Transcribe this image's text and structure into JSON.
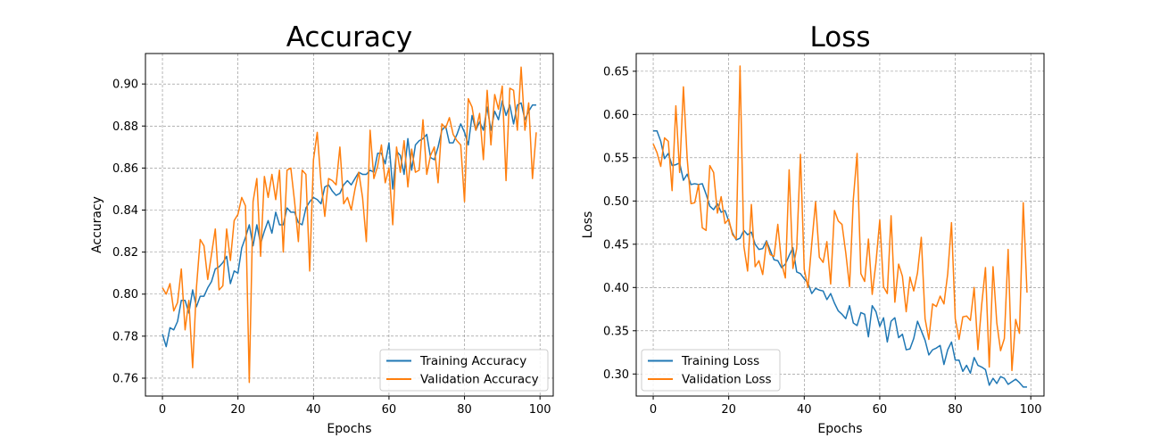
{
  "chart_data": [
    {
      "type": "line",
      "title": "Accuracy",
      "xlabel": "Epochs",
      "ylabel": "Accuracy",
      "xlim": [
        -4.5,
        103.5
      ],
      "ylim": [
        0.7515,
        0.9145
      ],
      "xticks": [
        0,
        20,
        40,
        60,
        80,
        100
      ],
      "yticks": [
        0.76,
        0.78,
        0.8,
        0.82,
        0.84,
        0.86,
        0.88,
        0.9
      ],
      "ytick_decimals": 2,
      "grid": true,
      "legend_position": "lower-right",
      "series": [
        {
          "name": "Training Accuracy",
          "color": "#1f77b4",
          "values": [
            0.781,
            0.775,
            0.784,
            0.783,
            0.787,
            0.797,
            0.797,
            0.791,
            0.802,
            0.794,
            0.799,
            0.799,
            0.803,
            0.806,
            0.812,
            0.813,
            0.815,
            0.818,
            0.805,
            0.811,
            0.81,
            0.822,
            0.827,
            0.833,
            0.823,
            0.833,
            0.824,
            0.83,
            0.835,
            0.829,
            0.839,
            0.833,
            0.833,
            0.841,
            0.839,
            0.839,
            0.834,
            0.833,
            0.841,
            0.844,
            0.846,
            0.845,
            0.843,
            0.851,
            0.852,
            0.849,
            0.847,
            0.848,
            0.852,
            0.854,
            0.852,
            0.855,
            0.858,
            0.857,
            0.857,
            0.859,
            0.858,
            0.867,
            0.867,
            0.862,
            0.872,
            0.85,
            0.868,
            0.866,
            0.857,
            0.874,
            0.859,
            0.871,
            0.873,
            0.874,
            0.876,
            0.865,
            0.864,
            0.87,
            0.878,
            0.88,
            0.872,
            0.872,
            0.876,
            0.881,
            0.877,
            0.871,
            0.885,
            0.878,
            0.882,
            0.878,
            0.889,
            0.878,
            0.887,
            0.883,
            0.892,
            0.885,
            0.89,
            0.881,
            0.89,
            0.891,
            0.883,
            0.887,
            0.89,
            0.89
          ]
        },
        {
          "name": "Validation Accuracy",
          "color": "#ff7f0e",
          "values": [
            0.803,
            0.8,
            0.805,
            0.792,
            0.796,
            0.812,
            0.783,
            0.797,
            0.765,
            0.803,
            0.826,
            0.823,
            0.807,
            0.819,
            0.831,
            0.802,
            0.804,
            0.831,
            0.816,
            0.835,
            0.838,
            0.846,
            0.842,
            0.758,
            0.844,
            0.855,
            0.818,
            0.856,
            0.846,
            0.857,
            0.845,
            0.859,
            0.82,
            0.859,
            0.86,
            0.844,
            0.825,
            0.859,
            0.857,
            0.811,
            0.864,
            0.877,
            0.853,
            0.837,
            0.855,
            0.854,
            0.852,
            0.87,
            0.843,
            0.846,
            0.84,
            0.85,
            0.858,
            0.846,
            0.825,
            0.878,
            0.855,
            0.861,
            0.871,
            0.853,
            0.86,
            0.833,
            0.87,
            0.858,
            0.873,
            0.851,
            0.869,
            0.858,
            0.859,
            0.883,
            0.857,
            0.866,
            0.87,
            0.853,
            0.881,
            0.879,
            0.884,
            0.876,
            0.873,
            0.871,
            0.844,
            0.893,
            0.889,
            0.878,
            0.886,
            0.864,
            0.897,
            0.871,
            0.895,
            0.888,
            0.899,
            0.854,
            0.898,
            0.897,
            0.878,
            0.908,
            0.878,
            0.891,
            0.855,
            0.877
          ]
        }
      ]
    },
    {
      "type": "line",
      "title": "Loss",
      "xlabel": "Epochs",
      "ylabel": "Loss",
      "xlim": [
        -4.5,
        103.5
      ],
      "ylim": [
        0.2745,
        0.6705
      ],
      "xticks": [
        0,
        20,
        40,
        60,
        80,
        100
      ],
      "yticks": [
        0.3,
        0.35,
        0.4,
        0.45,
        0.5,
        0.55,
        0.6,
        0.65
      ],
      "ytick_decimals": 2,
      "grid": true,
      "legend_position": "lower-left",
      "series": [
        {
          "name": "Training Loss",
          "color": "#1f77b4",
          "values": [
            0.581,
            0.581,
            0.569,
            0.549,
            0.555,
            0.541,
            0.542,
            0.544,
            0.524,
            0.531,
            0.519,
            0.52,
            0.519,
            0.52,
            0.508,
            0.494,
            0.49,
            0.497,
            0.487,
            0.489,
            0.477,
            0.463,
            0.455,
            0.457,
            0.466,
            0.461,
            0.464,
            0.45,
            0.444,
            0.445,
            0.454,
            0.443,
            0.432,
            0.431,
            0.423,
            0.427,
            0.437,
            0.446,
            0.418,
            0.416,
            0.41,
            0.405,
            0.393,
            0.399,
            0.397,
            0.396,
            0.386,
            0.393,
            0.382,
            0.373,
            0.369,
            0.364,
            0.379,
            0.359,
            0.356,
            0.371,
            0.369,
            0.343,
            0.379,
            0.372,
            0.355,
            0.365,
            0.337,
            0.361,
            0.365,
            0.342,
            0.346,
            0.328,
            0.329,
            0.341,
            0.361,
            0.35,
            0.339,
            0.322,
            0.328,
            0.33,
            0.333,
            0.311,
            0.328,
            0.337,
            0.316,
            0.316,
            0.303,
            0.31,
            0.301,
            0.319,
            0.31,
            0.308,
            0.305,
            0.287,
            0.295,
            0.289,
            0.297,
            0.295,
            0.288,
            0.291,
            0.294,
            0.29,
            0.285,
            0.285
          ]
        },
        {
          "name": "Validation Loss",
          "color": "#ff7f0e",
          "values": [
            0.566,
            0.556,
            0.54,
            0.573,
            0.569,
            0.512,
            0.61,
            0.533,
            0.632,
            0.549,
            0.497,
            0.498,
            0.519,
            0.469,
            0.466,
            0.541,
            0.533,
            0.486,
            0.505,
            0.474,
            0.479,
            0.461,
            0.456,
            0.656,
            0.448,
            0.419,
            0.496,
            0.424,
            0.431,
            0.415,
            0.453,
            0.438,
            0.436,
            0.473,
            0.428,
            0.411,
            0.536,
            0.422,
            0.445,
            0.554,
            0.421,
            0.4,
            0.451,
            0.499,
            0.435,
            0.429,
            0.453,
            0.404,
            0.489,
            0.477,
            0.473,
            0.44,
            0.401,
            0.502,
            0.555,
            0.416,
            0.407,
            0.456,
            0.392,
            0.429,
            0.478,
            0.401,
            0.393,
            0.483,
            0.383,
            0.427,
            0.413,
            0.372,
            0.412,
            0.396,
            0.417,
            0.458,
            0.364,
            0.34,
            0.381,
            0.378,
            0.39,
            0.381,
            0.416,
            0.475,
            0.364,
            0.34,
            0.366,
            0.367,
            0.362,
            0.4,
            0.328,
            0.38,
            0.423,
            0.308,
            0.424,
            0.359,
            0.327,
            0.341,
            0.444,
            0.304,
            0.363,
            0.347,
            0.498,
            0.394
          ]
        }
      ]
    }
  ]
}
